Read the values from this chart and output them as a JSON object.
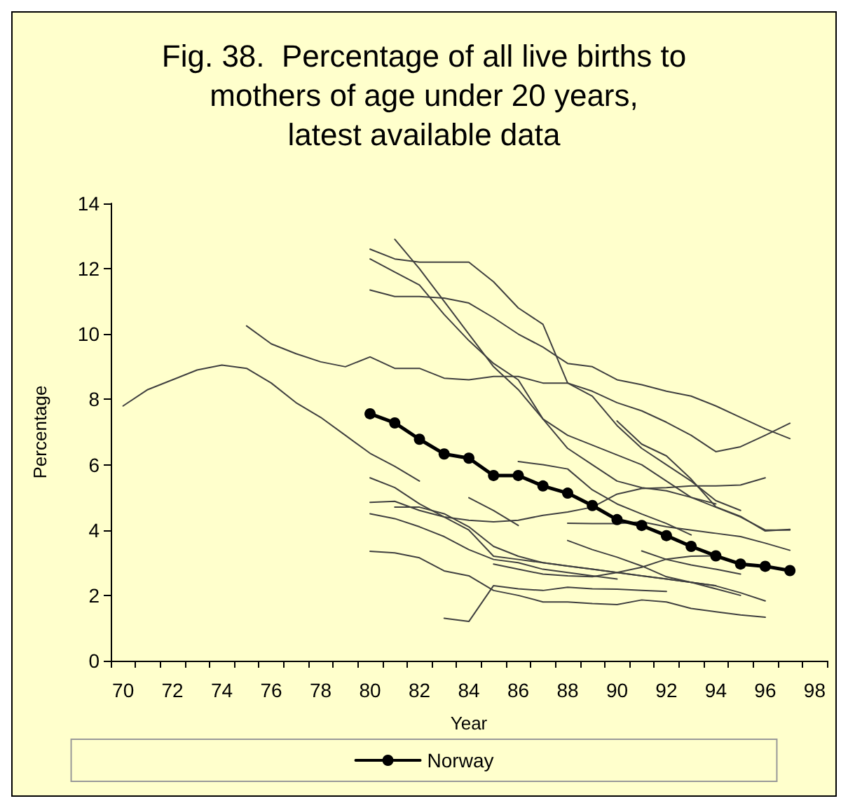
{
  "chart_data": {
    "type": "line",
    "title": "Fig. 38.  Percentage of all live births to\nmothers of age under 20 years,\nlatest available data",
    "xlabel": "Year",
    "ylabel": "Percentage",
    "categories": [
      "70",
      null,
      "72",
      null,
      "74",
      null,
      "76",
      null,
      "78",
      null,
      "80",
      null,
      "82",
      null,
      "84",
      null,
      "86",
      null,
      "88",
      null,
      "90",
      null,
      "92",
      null,
      "94",
      null,
      "96",
      null,
      "98"
    ],
    "ylim": [
      0,
      14
    ],
    "yticks": [
      0,
      2,
      4,
      6,
      8,
      10,
      12,
      14
    ],
    "grid": false,
    "legend": "bottom",
    "marker": "none",
    "series": [
      {
        "color": "#404040",
        "values": [
          7.8,
          8.3,
          8.6,
          8.9,
          9.05,
          8.95,
          8.5,
          7.9,
          7.45,
          6.9,
          6.35,
          5.95,
          5.5,
          null,
          null,
          null,
          null,
          null,
          null,
          null,
          null,
          null,
          null,
          null,
          null,
          null,
          null,
          null,
          null
        ]
      },
      {
        "color": "#404040",
        "values": [
          null,
          null,
          null,
          null,
          null,
          10.25,
          9.7,
          9.4,
          9.15,
          9.0,
          9.3,
          8.95,
          8.95,
          8.65,
          8.6,
          8.7,
          8.7,
          8.5,
          8.5,
          8.25,
          7.9,
          7.65,
          7.3,
          6.9,
          6.4,
          6.55,
          6.9,
          7.27,
          null
        ]
      },
      {
        "color": "#404040",
        "values": [
          null,
          null,
          null,
          null,
          null,
          null,
          null,
          null,
          null,
          null,
          12.6,
          12.3,
          12.2,
          12.2,
          12.2,
          11.6,
          10.8,
          10.3,
          8.5,
          8.1,
          7.2,
          6.5,
          6.0,
          5.5,
          4.9,
          4.6,
          null,
          null,
          null
        ]
      },
      {
        "color": "#404040",
        "values": [
          null,
          null,
          null,
          null,
          null,
          null,
          null,
          null,
          null,
          null,
          12.3,
          11.9,
          11.5,
          10.6,
          9.8,
          9.1,
          8.6,
          7.4,
          6.5,
          6.0,
          5.5,
          5.3,
          5.2,
          5.0,
          4.8,
          null,
          null,
          null,
          null
        ]
      },
      {
        "color": "#404040",
        "values": [
          null,
          null,
          null,
          null,
          null,
          null,
          null,
          null,
          null,
          null,
          null,
          12.9,
          12.0,
          11.0,
          10.0,
          9.0,
          8.3,
          7.4,
          6.9,
          6.6,
          6.3,
          6.0,
          5.5,
          5.0,
          4.7,
          4.4,
          4.0,
          4.0,
          null
        ]
      },
      {
        "color": "#404040",
        "values": [
          null,
          null,
          null,
          null,
          null,
          null,
          null,
          null,
          null,
          null,
          11.35,
          11.15,
          11.15,
          11.1,
          10.95,
          10.5,
          10.0,
          9.6,
          9.1,
          9.0,
          8.6,
          8.45,
          8.25,
          8.1,
          7.8,
          7.45,
          7.1,
          6.8,
          null
        ]
      },
      {
        "color": "#404040",
        "values": [
          null,
          null,
          null,
          null,
          null,
          null,
          null,
          null,
          null,
          null,
          5.6,
          5.3,
          4.8,
          4.4,
          4.0,
          3.2,
          3.1,
          3.0,
          2.9,
          2.8,
          2.7,
          2.6,
          2.5,
          2.4,
          2.2,
          2.0,
          null,
          null,
          null
        ]
      },
      {
        "color": "#404040",
        "values": [
          null,
          null,
          null,
          null,
          null,
          null,
          null,
          null,
          null,
          null,
          4.85,
          4.88,
          4.6,
          4.4,
          4.3,
          4.25,
          4.3,
          4.45,
          4.55,
          4.7,
          5.1,
          5.27,
          5.3,
          5.35,
          5.35,
          5.38,
          5.6,
          null,
          null
        ]
      },
      {
        "color": "#404040",
        "values": [
          null,
          null,
          null,
          null,
          null,
          null,
          null,
          null,
          null,
          null,
          null,
          4.7,
          4.7,
          4.5,
          4.1,
          3.5,
          3.2,
          3.0,
          2.9,
          2.8,
          2.7,
          2.6,
          2.5,
          2.4,
          2.3,
          null,
          null,
          null,
          null
        ]
      },
      {
        "color": "#404040",
        "values": [
          null,
          null,
          null,
          null,
          null,
          null,
          null,
          null,
          null,
          null,
          4.5,
          4.35,
          4.1,
          3.8,
          3.4,
          3.1,
          3.0,
          2.8,
          2.7,
          2.6,
          2.5,
          null,
          null,
          null,
          null,
          null,
          null,
          null,
          null
        ]
      },
      {
        "color": "#404040",
        "values": [
          null,
          null,
          null,
          null,
          null,
          null,
          null,
          null,
          null,
          null,
          3.35,
          3.3,
          3.15,
          2.75,
          2.6,
          2.15,
          2.0,
          1.8,
          1.8,
          1.75,
          1.72,
          1.86,
          1.8,
          1.6,
          1.5,
          1.4,
          1.33,
          null,
          null
        ]
      },
      {
        "color": "#404040",
        "values": [
          null,
          null,
          null,
          null,
          null,
          null,
          null,
          null,
          null,
          null,
          null,
          null,
          null,
          1.3,
          1.2,
          2.3,
          2.2,
          2.15,
          2.25,
          2.2,
          2.19,
          2.15,
          2.12,
          null,
          null,
          null,
          null,
          null,
          null
        ]
      },
      {
        "color": "#404040",
        "values": [
          null,
          null,
          null,
          null,
          null,
          null,
          null,
          null,
          null,
          null,
          null,
          null,
          null,
          null,
          null,
          null,
          6.1,
          6.0,
          5.87,
          5.23,
          4.8,
          4.49,
          4.2,
          3.85,
          null,
          null,
          null,
          null,
          null
        ]
      },
      {
        "color": "#404040",
        "values": [
          null,
          null,
          null,
          null,
          null,
          null,
          null,
          null,
          null,
          null,
          null,
          null,
          null,
          null,
          null,
          null,
          null,
          null,
          4.21,
          4.2,
          4.2,
          4.25,
          4.1,
          4.0,
          3.9,
          3.8,
          3.6,
          3.38,
          null
        ]
      },
      {
        "color": "#404040",
        "values": [
          null,
          null,
          null,
          null,
          null,
          null,
          null,
          null,
          null,
          null,
          null,
          null,
          null,
          null,
          4.99,
          4.6,
          4.14,
          null,
          null,
          null,
          null,
          null,
          null,
          null,
          null,
          null,
          null,
          null,
          null
        ]
      },
      {
        "color": "#404040",
        "values": [
          null,
          null,
          null,
          null,
          null,
          null,
          null,
          null,
          null,
          null,
          null,
          null,
          null,
          null,
          null,
          null,
          null,
          null,
          3.68,
          3.4,
          3.17,
          2.9,
          2.57,
          2.4,
          2.29,
          2.08,
          1.83,
          null,
          null
        ]
      },
      {
        "color": "#404040",
        "values": [
          null,
          null,
          null,
          null,
          null,
          null,
          null,
          null,
          null,
          null,
          null,
          null,
          null,
          null,
          null,
          null,
          null,
          null,
          null,
          null,
          null,
          3.36,
          3.1,
          2.93,
          2.8,
          2.65,
          null,
          null,
          null
        ]
      },
      {
        "color": "#404040",
        "values": [
          null,
          null,
          null,
          null,
          null,
          null,
          null,
          null,
          null,
          null,
          null,
          null,
          null,
          null,
          null,
          2.96,
          2.8,
          2.65,
          2.6,
          2.57,
          2.7,
          2.86,
          3.11,
          3.2,
          3.21,
          null,
          null,
          null,
          null
        ]
      },
      {
        "color": "#404040",
        "values": [
          null,
          null,
          null,
          null,
          null,
          null,
          null,
          null,
          null,
          null,
          null,
          null,
          null,
          null,
          null,
          null,
          null,
          null,
          null,
          null,
          7.34,
          6.63,
          6.27,
          5.56,
          4.71,
          4.42,
          3.97,
          4.02,
          null
        ]
      },
      {
        "name": "Norway",
        "color": "#000000",
        "marker": "circle",
        "values": [
          null,
          null,
          null,
          null,
          null,
          null,
          null,
          null,
          null,
          null,
          7.56,
          7.28,
          6.78,
          6.33,
          6.2,
          5.67,
          5.67,
          5.35,
          5.13,
          4.75,
          4.32,
          4.14,
          3.83,
          3.5,
          3.21,
          2.96,
          2.89,
          2.76,
          null
        ]
      }
    ]
  }
}
